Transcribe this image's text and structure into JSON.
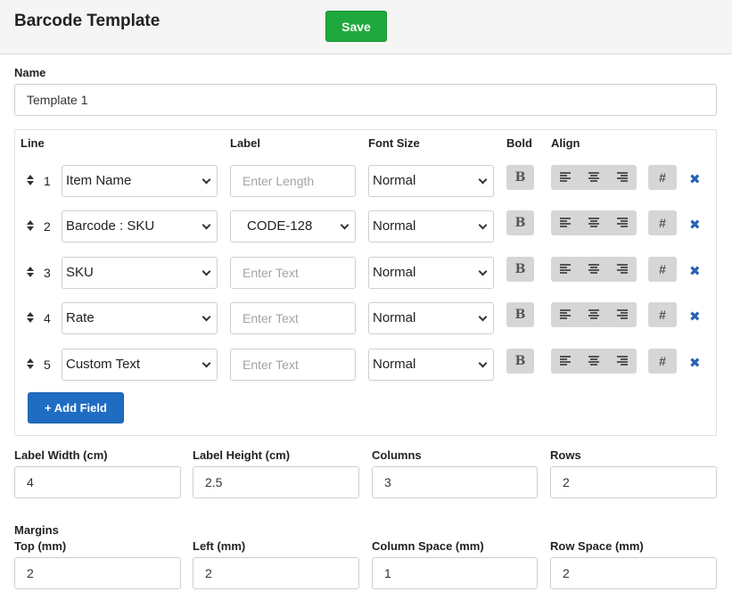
{
  "header": {
    "title": "Barcode Template",
    "save_label": "Save"
  },
  "name": {
    "label": "Name",
    "value": "Template 1"
  },
  "lines": {
    "headers": {
      "line": "Line",
      "label": "Label",
      "font_size": "Font Size",
      "bold": "Bold",
      "align": "Align"
    },
    "rows": [
      {
        "num": "1",
        "field": "Item Name",
        "label_type": "input",
        "label_placeholder": "Enter Length",
        "font_size": "Normal"
      },
      {
        "num": "2",
        "field": "Barcode : SKU",
        "label_type": "select",
        "label_value": "CODE-128",
        "font_size": "Normal"
      },
      {
        "num": "3",
        "field": "SKU",
        "label_type": "input",
        "label_placeholder": "Enter Text",
        "font_size": "Normal"
      },
      {
        "num": "4",
        "field": "Rate",
        "label_type": "input",
        "label_placeholder": "Enter Text",
        "font_size": "Normal"
      },
      {
        "num": "5",
        "field": "Custom Text",
        "label_type": "input",
        "label_placeholder": "Enter Text",
        "font_size": "Normal"
      }
    ],
    "bold_glyph": "B",
    "hash_glyph": "#",
    "delete_glyph": "✖",
    "add_field_label": "+ Add Field"
  },
  "dimensions": {
    "label_width": {
      "label": "Label Width (cm)",
      "value": "4"
    },
    "label_height": {
      "label": "Label Height (cm)",
      "value": "2.5"
    },
    "columns": {
      "label": "Columns",
      "value": "3"
    },
    "rows": {
      "label": "Rows",
      "value": "2"
    }
  },
  "margins": {
    "title": "Margins",
    "top": {
      "label": "Top (mm)",
      "value": "2"
    },
    "left": {
      "label": "Left (mm)",
      "value": "2"
    },
    "column_space": {
      "label": "Column Space (mm)",
      "value": "1"
    },
    "row_space": {
      "label": "Row Space (mm)",
      "value": "2"
    }
  },
  "colors": {
    "save": "#1fa83d",
    "add_field": "#1f6dc2",
    "delete": "#2a62b5",
    "tool_bg": "#d6d6d6"
  }
}
